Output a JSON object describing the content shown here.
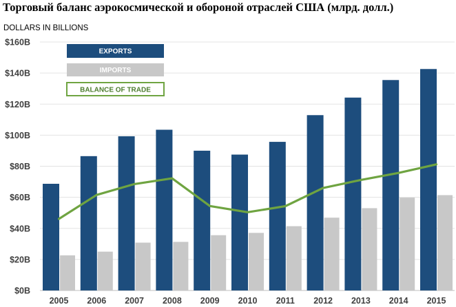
{
  "chart_data": {
    "type": "bar",
    "title": "Торговый баланс аэрокосмической и обороной отраслей США (млрд. долл.)",
    "ylabel": "DOLLARS IN BILLIONS",
    "xlabel": "",
    "categories": [
      "2005",
      "2006",
      "2007",
      "2008",
      "2009",
      "2010",
      "2011",
      "2012",
      "2013",
      "2014",
      "2015"
    ],
    "ylim": [
      0,
      160
    ],
    "yticks": [
      0,
      20,
      40,
      60,
      80,
      100,
      120,
      140,
      160
    ],
    "ytick_labels": [
      "$0B",
      "$20B",
      "$40B",
      "$60B",
      "$80B",
      "$100B",
      "$120B",
      "$140B",
      "$160B"
    ],
    "grid": true,
    "legend_position": "top-left",
    "series": [
      {
        "name": "EXPORTS",
        "kind": "bar",
        "color": "#1d4d7d",
        "values": [
          68.7,
          86.5,
          99.3,
          103.5,
          90.0,
          87.5,
          95.7,
          112.9,
          124.2,
          135.5,
          142.6
        ]
      },
      {
        "name": "IMPORTS",
        "kind": "bar",
        "color": "#c8c8c8",
        "values": [
          22.6,
          25.0,
          30.8,
          31.3,
          35.6,
          37.1,
          41.4,
          46.9,
          53.0,
          59.8,
          61.4
        ]
      },
      {
        "name": "BALANCE OF TRADE",
        "kind": "line",
        "color": "#6fa441",
        "values": [
          46.1,
          61.5,
          68.5,
          72.2,
          54.4,
          50.4,
          54.3,
          66.0,
          71.2,
          75.7,
          81.2
        ]
      }
    ]
  }
}
